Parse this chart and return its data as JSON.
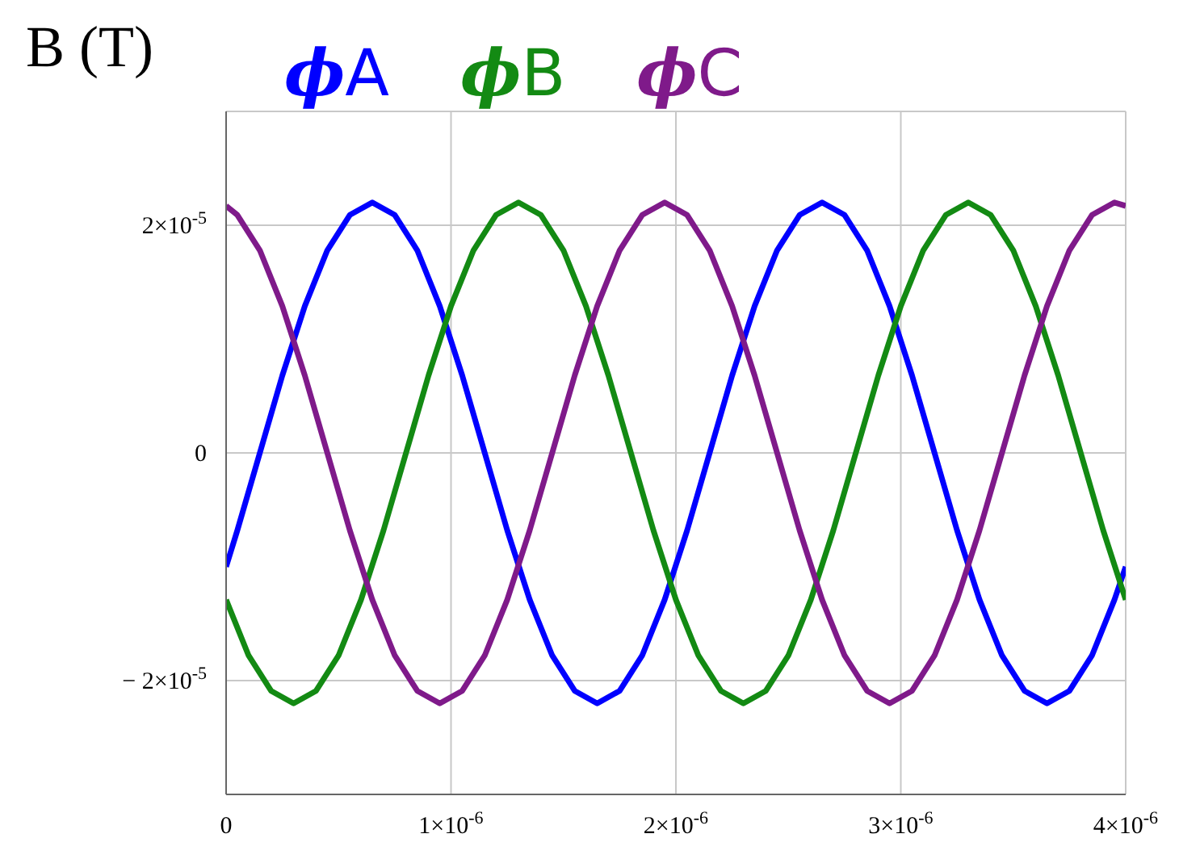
{
  "chart_data": {
    "type": "line",
    "ylabel": "B (T)",
    "xlim": [
      0,
      4e-06
    ],
    "ylim": [
      -3e-05,
      3e-05
    ],
    "xticks": [
      0,
      {
        "value": 1e-06,
        "label": "1×10$^{-6}$"
      },
      {
        "value": 2e-06,
        "label": "2×10$^{-6}$"
      },
      {
        "value": 3e-06,
        "label": "3×10$^{-6}$"
      },
      {
        "value": 4e-06,
        "label": "4×10$^{-6}$"
      }
    ],
    "yticks": [
      {
        "value": -2e-05,
        "label": "− 2×10$^{-5}$"
      },
      0,
      {
        "value": 2e-05,
        "label": "2×10$^{-5}$"
      }
    ],
    "grid": true,
    "legend": "top",
    "marker": "none",
    "line_style": "solid",
    "series": [
      {
        "name": "ϕA",
        "color": "#0000ff",
        "x": [
          0,
          5e-08,
          1.5e-07,
          2.5e-07,
          3.5e-07,
          4.5e-07,
          5.5e-07,
          6.5e-07,
          7.5e-07,
          8.5e-07,
          9.5e-07,
          1.05e-06,
          1.15e-06,
          1.25e-06,
          1.35e-06,
          1.45e-06,
          1.55e-06,
          1.65e-06,
          1.75e-06,
          1.85e-06,
          1.95e-06,
          2.05e-06,
          2.15e-06,
          2.25e-06,
          2.35e-06,
          2.45e-06,
          2.55e-06,
          2.65e-06,
          2.75e-06,
          2.85e-06,
          2.95e-06,
          3.05e-06,
          3.15e-06,
          3.25e-06,
          3.35e-06,
          3.45e-06,
          3.55e-06,
          3.65e-06,
          3.75e-06,
          3.85e-06,
          3.95e-06,
          4e-06
        ],
        "values": [
          -1e-05,
          -6.8e-06,
          0,
          6.8e-06,
          1.29e-05,
          1.78e-05,
          2.09e-05,
          2.2e-05,
          2.09e-05,
          1.78e-05,
          1.29e-05,
          6.8e-06,
          0,
          -6.8e-06,
          -1.29e-05,
          -1.78e-05,
          -2.09e-05,
          -2.2e-05,
          -2.09e-05,
          -1.78e-05,
          -1.29e-05,
          -6.8e-06,
          0,
          6.8e-06,
          1.29e-05,
          1.78e-05,
          2.09e-05,
          2.2e-05,
          2.09e-05,
          1.78e-05,
          1.29e-05,
          6.8e-06,
          0,
          -6.8e-06,
          -1.29e-05,
          -1.78e-05,
          -2.09e-05,
          -2.2e-05,
          -2.09e-05,
          -1.78e-05,
          -1.29e-05,
          -1e-05
        ]
      },
      {
        "name": "ϕB",
        "color": "#138a13",
        "x": [
          0,
          1e-07,
          2e-07,
          3e-07,
          4e-07,
          5e-07,
          6e-07,
          7e-07,
          8e-07,
          9e-07,
          1e-06,
          1.1e-06,
          1.2e-06,
          1.3e-06,
          1.4e-06,
          1.5e-06,
          1.6e-06,
          1.7e-06,
          1.8e-06,
          1.9e-06,
          2e-06,
          2.1e-06,
          2.2e-06,
          2.3e-06,
          2.4e-06,
          2.5e-06,
          2.6e-06,
          2.7e-06,
          2.8e-06,
          2.9e-06,
          3e-06,
          3.1e-06,
          3.2e-06,
          3.3e-06,
          3.4e-06,
          3.5e-06,
          3.6e-06,
          3.7e-06,
          3.8e-06,
          3.9e-06,
          4e-06
        ],
        "values": [
          -1.29e-05,
          -1.78e-05,
          -2.09e-05,
          -2.2e-05,
          -2.09e-05,
          -1.78e-05,
          -1.29e-05,
          -6.8e-06,
          0,
          6.8e-06,
          1.29e-05,
          1.78e-05,
          2.09e-05,
          2.2e-05,
          2.09e-05,
          1.78e-05,
          1.29e-05,
          6.8e-06,
          0,
          -6.8e-06,
          -1.29e-05,
          -1.78e-05,
          -2.09e-05,
          -2.2e-05,
          -2.09e-05,
          -1.78e-05,
          -1.29e-05,
          -6.8e-06,
          0,
          6.8e-06,
          1.29e-05,
          1.78e-05,
          2.09e-05,
          2.2e-05,
          2.09e-05,
          1.78e-05,
          1.29e-05,
          6.8e-06,
          0,
          -6.8e-06,
          -1.29e-05
        ]
      },
      {
        "name": "ϕC",
        "color": "#7f1a8a",
        "x": [
          0,
          5e-08,
          1.5e-07,
          2.5e-07,
          3.5e-07,
          4.5e-07,
          5.5e-07,
          6.5e-07,
          7.5e-07,
          8.5e-07,
          9.5e-07,
          1.05e-06,
          1.15e-06,
          1.25e-06,
          1.35e-06,
          1.45e-06,
          1.55e-06,
          1.65e-06,
          1.75e-06,
          1.85e-06,
          1.95e-06,
          2.05e-06,
          2.15e-06,
          2.25e-06,
          2.35e-06,
          2.45e-06,
          2.55e-06,
          2.65e-06,
          2.75e-06,
          2.85e-06,
          2.95e-06,
          3.05e-06,
          3.15e-06,
          3.25e-06,
          3.35e-06,
          3.45e-06,
          3.55e-06,
          3.65e-06,
          3.75e-06,
          3.85e-06,
          3.95e-06,
          4e-06
        ],
        "values": [
          2.17e-05,
          2.09e-05,
          1.78e-05,
          1.29e-05,
          6.8e-06,
          0,
          -6.8e-06,
          -1.29e-05,
          -1.78e-05,
          -2.09e-05,
          -2.2e-05,
          -2.09e-05,
          -1.78e-05,
          -1.29e-05,
          -6.8e-06,
          0,
          6.8e-06,
          1.29e-05,
          1.78e-05,
          2.09e-05,
          2.2e-05,
          2.09e-05,
          1.78e-05,
          1.29e-05,
          6.8e-06,
          0,
          -6.8e-06,
          -1.29e-05,
          -1.78e-05,
          -2.09e-05,
          -2.2e-05,
          -2.09e-05,
          -1.78e-05,
          -1.29e-05,
          -6.8e-06,
          0,
          6.8e-06,
          1.29e-05,
          1.78e-05,
          2.09e-05,
          2.2e-05,
          2.17e-05
        ]
      }
    ]
  }
}
